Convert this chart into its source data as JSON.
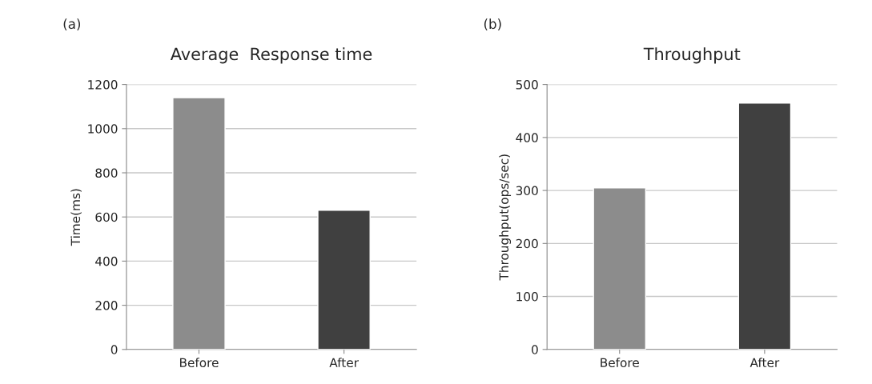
{
  "chart_data": [
    {
      "type": "bar",
      "title": "Average  Response time",
      "ylabel": "Time(ms)",
      "annotations": [
        "(a)"
      ],
      "categories": [
        "Before",
        "After"
      ],
      "values": [
        1140,
        630
      ],
      "colors": [
        "#8c8c8c",
        "#404040"
      ],
      "ylim": [
        0,
        1200
      ],
      "yticks": [
        0,
        200,
        400,
        600,
        800,
        1000,
        1200
      ],
      "grid": "y",
      "legend": false
    },
    {
      "type": "bar",
      "title": "Throughput",
      "ylabel": "Throughput(ops/sec)",
      "annotations": [
        "(b)"
      ],
      "categories": [
        "Before",
        "After"
      ],
      "values": [
        305,
        465
      ],
      "colors": [
        "#8c8c8c",
        "#404040"
      ],
      "ylim": [
        0,
        500
      ],
      "yticks": [
        0,
        100,
        200,
        300,
        400,
        500
      ],
      "grid": "y",
      "legend": false
    }
  ]
}
